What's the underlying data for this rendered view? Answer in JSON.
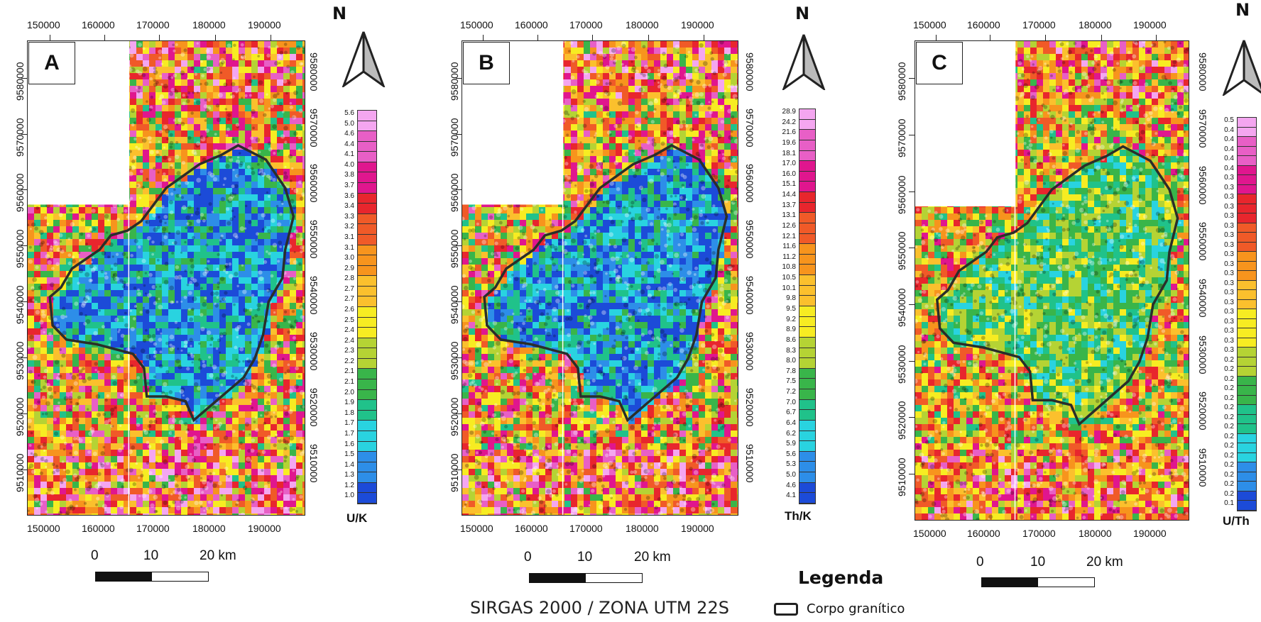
{
  "crs": "SIRGAS 2000 / ZONA UTM 22S",
  "legend": {
    "title": "Legenda",
    "item": "Corpo granítico"
  },
  "north_label": "N",
  "scale": {
    "labels": [
      "0",
      "10",
      "20 km"
    ]
  },
  "x_ticks": [
    "150000",
    "160000",
    "170000",
    "180000",
    "190000"
  ],
  "y_ticks_left": [
    "9510000",
    "9520000",
    "9530000",
    "9540000",
    "9550000",
    "9560000",
    "9570000",
    "9580000"
  ],
  "y_ticks_right": [
    "9510000",
    "9520000",
    "9530000",
    "9540000",
    "9550000",
    "9560000",
    "9570000",
    "9580000"
  ],
  "panels": [
    {
      "id": "A",
      "letter": "A",
      "ratio_title": "U/K",
      "y_ticks_right": [
        "9510000",
        "9520000",
        "9530000",
        "9540000",
        "9550000",
        "9560000",
        "9570000",
        "9580000"
      ],
      "colorbar": [
        "5.6",
        "5.0",
        "4.6",
        "4.4",
        "4.1",
        "4.0",
        "3.8",
        "3.7",
        "3.6",
        "3.4",
        "3.3",
        "3.2",
        "3.1",
        "3.1",
        "3.0",
        "2.9",
        "2.8",
        "2.7",
        "2.7",
        "2.6",
        "2.5",
        "2.4",
        "2.4",
        "2.3",
        "2.2",
        "2.1",
        "2.1",
        "2.0",
        "1.9",
        "1.8",
        "1.7",
        "1.7",
        "1.6",
        "1.5",
        "1.4",
        "1.3",
        "1.2",
        "1.0"
      ]
    },
    {
      "id": "B",
      "letter": "B",
      "ratio_title": "Th/K",
      "y_ticks_right": [
        "9510000",
        "9520000",
        "9530000",
        "9540000",
        "9550000",
        "9560000",
        "9570000",
        "9580000"
      ],
      "colorbar": [
        "28.9",
        "24.2",
        "21.6",
        "19.6",
        "18.1",
        "17.0",
        "16.0",
        "15.1",
        "14.4",
        "13.7",
        "13.1",
        "12.6",
        "12.1",
        "11.6",
        "11.2",
        "10.8",
        "10.5",
        "10.1",
        "9.8",
        "9.5",
        "9.2",
        "8.9",
        "8.6",
        "8.3",
        "8.0",
        "7.8",
        "7.5",
        "7.2",
        "7.0",
        "6.7",
        "6.4",
        "6.2",
        "5.9",
        "5.6",
        "5.3",
        "5.0",
        "4.6",
        "4.1"
      ]
    },
    {
      "id": "C",
      "letter": "C",
      "ratio_title": "U/Th",
      "y_ticks_right": [
        "9510000",
        "9520000",
        "9530000",
        "9540000",
        "9550000",
        "9560000",
        "9570000",
        "9580000"
      ],
      "y_left_top_fragment": "958( )0(",
      "colorbar": [
        "0.5",
        "0.4",
        "0.4",
        "0.4",
        "0.4",
        "0.4",
        "0.3",
        "0.3",
        "0.3",
        "0.3",
        "0.3",
        "0.3",
        "0.3",
        "0.3",
        "0.3",
        "0.3",
        "0.3",
        "0.3",
        "0.3",
        "0.3",
        "0.3",
        "0.3",
        "0.3",
        "0.3",
        "0.3",
        "0.2",
        "0.2",
        "0.2",
        "0.2",
        "0.2",
        "0.2",
        "0.2",
        "0.2",
        "0.2",
        "0.2",
        "0.2",
        "0.2",
        "0.2",
        "0.2",
        "0.2",
        "0.1"
      ]
    }
  ],
  "colors": {
    "pink": "#f4a6f0",
    "magenta": "#e0168e",
    "red": "#e8262d",
    "orange": "#f7941d",
    "yellow": "#f7ec22",
    "green": "#39b54a",
    "cyan": "#29d3e0",
    "blue": "#1c4bd8",
    "outline": "#2a2e2a"
  }
}
